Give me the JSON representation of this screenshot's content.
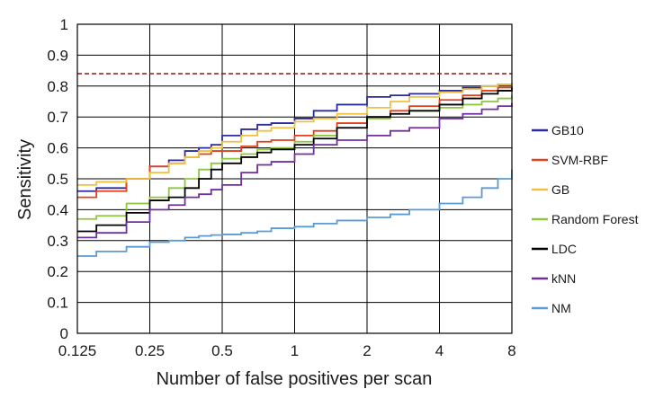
{
  "chart_data": {
    "type": "line",
    "xlabel": "Number of false positives per scan",
    "ylabel": "Sensitivity",
    "x_scale": "log2",
    "xlim": [
      0.125,
      8
    ],
    "ylim": [
      0,
      1
    ],
    "x_ticks": [
      0.125,
      0.25,
      0.5,
      1,
      2,
      4,
      8
    ],
    "x_tick_labels": [
      "0.125",
      "0.25",
      "0.5",
      "1",
      "2",
      "4",
      "8"
    ],
    "y_ticks": [
      0,
      0.1,
      0.2,
      0.3,
      0.4,
      0.5,
      0.6,
      0.7,
      0.8,
      0.9,
      1
    ],
    "y_tick_labels": [
      "0",
      "0.1",
      "0.2",
      "0.3",
      "0.4",
      "0.5",
      "0.6",
      "0.7",
      "0.8",
      "0.9",
      "1"
    ],
    "grid": true,
    "legend_position": "right",
    "reference_line": {
      "y": 0.84,
      "style": "dashed",
      "color": "#8b1a1a"
    },
    "series": [
      {
        "name": "GB10",
        "color": "#2b2b9f",
        "x": [
          0.125,
          0.15,
          0.2,
          0.25,
          0.3,
          0.35,
          0.4,
          0.45,
          0.5,
          0.6,
          0.7,
          0.8,
          1,
          1.2,
          1.5,
          2,
          2.5,
          3,
          4,
          5,
          6,
          7,
          8
        ],
        "y": [
          0.46,
          0.47,
          0.5,
          0.54,
          0.56,
          0.59,
          0.6,
          0.61,
          0.64,
          0.66,
          0.675,
          0.68,
          0.695,
          0.72,
          0.74,
          0.765,
          0.77,
          0.775,
          0.785,
          0.795,
          0.8,
          0.805,
          0.81
        ]
      },
      {
        "name": "SVM-RBF",
        "color": "#e0401a",
        "x": [
          0.125,
          0.15,
          0.2,
          0.25,
          0.3,
          0.35,
          0.4,
          0.45,
          0.5,
          0.6,
          0.7,
          0.8,
          1,
          1.2,
          1.5,
          2,
          2.5,
          3,
          4,
          5,
          6,
          7,
          8
        ],
        "y": [
          0.44,
          0.46,
          0.5,
          0.54,
          0.55,
          0.57,
          0.58,
          0.59,
          0.59,
          0.605,
          0.62,
          0.625,
          0.64,
          0.655,
          0.68,
          0.7,
          0.72,
          0.735,
          0.755,
          0.77,
          0.785,
          0.795,
          0.8
        ]
      },
      {
        "name": "GB",
        "color": "#f0c040",
        "x": [
          0.125,
          0.15,
          0.2,
          0.25,
          0.3,
          0.35,
          0.4,
          0.45,
          0.5,
          0.6,
          0.7,
          0.8,
          1,
          1.2,
          1.5,
          2,
          2.5,
          3,
          4,
          5,
          6,
          7,
          8
        ],
        "y": [
          0.48,
          0.49,
          0.5,
          0.52,
          0.55,
          0.57,
          0.59,
          0.6,
          0.62,
          0.64,
          0.655,
          0.665,
          0.685,
          0.695,
          0.71,
          0.73,
          0.75,
          0.765,
          0.78,
          0.79,
          0.8,
          0.805,
          0.81
        ]
      },
      {
        "name": "Random Forest",
        "color": "#8ec63f",
        "x": [
          0.125,
          0.15,
          0.2,
          0.25,
          0.3,
          0.35,
          0.4,
          0.45,
          0.5,
          0.6,
          0.7,
          0.8,
          1,
          1.2,
          1.5,
          2,
          2.5,
          3,
          4,
          5,
          6,
          7,
          8
        ],
        "y": [
          0.37,
          0.38,
          0.42,
          0.44,
          0.47,
          0.5,
          0.53,
          0.55,
          0.565,
          0.58,
          0.595,
          0.6,
          0.62,
          0.64,
          0.665,
          0.695,
          0.71,
          0.72,
          0.73,
          0.74,
          0.75,
          0.76,
          0.77
        ]
      },
      {
        "name": "LDC",
        "color": "#000000",
        "x": [
          0.125,
          0.15,
          0.2,
          0.25,
          0.3,
          0.35,
          0.4,
          0.45,
          0.5,
          0.6,
          0.7,
          0.8,
          1,
          1.2,
          1.5,
          2,
          2.5,
          3,
          4,
          5,
          6,
          7,
          8
        ],
        "y": [
          0.33,
          0.35,
          0.39,
          0.43,
          0.44,
          0.47,
          0.5,
          0.53,
          0.55,
          0.57,
          0.585,
          0.595,
          0.61,
          0.63,
          0.665,
          0.7,
          0.71,
          0.72,
          0.74,
          0.76,
          0.775,
          0.785,
          0.795
        ]
      },
      {
        "name": "kNN",
        "color": "#7030a0",
        "x": [
          0.125,
          0.15,
          0.2,
          0.25,
          0.3,
          0.35,
          0.4,
          0.45,
          0.5,
          0.6,
          0.7,
          0.8,
          1,
          1.2,
          1.5,
          2,
          2.5,
          3,
          4,
          5,
          6,
          7,
          8
        ],
        "y": [
          0.31,
          0.325,
          0.36,
          0.4,
          0.415,
          0.44,
          0.45,
          0.465,
          0.48,
          0.52,
          0.545,
          0.555,
          0.58,
          0.61,
          0.625,
          0.64,
          0.655,
          0.665,
          0.695,
          0.71,
          0.725,
          0.735,
          0.745
        ]
      },
      {
        "name": "NM",
        "color": "#5b9bd5",
        "x": [
          0.125,
          0.15,
          0.2,
          0.25,
          0.3,
          0.35,
          0.4,
          0.45,
          0.5,
          0.6,
          0.7,
          0.8,
          1,
          1.2,
          1.5,
          2,
          2.5,
          3,
          4,
          5,
          6,
          7,
          8
        ],
        "y": [
          0.25,
          0.265,
          0.28,
          0.295,
          0.3,
          0.31,
          0.315,
          0.318,
          0.32,
          0.325,
          0.33,
          0.34,
          0.345,
          0.355,
          0.365,
          0.375,
          0.385,
          0.4,
          0.42,
          0.44,
          0.47,
          0.5,
          0.53
        ]
      }
    ]
  }
}
